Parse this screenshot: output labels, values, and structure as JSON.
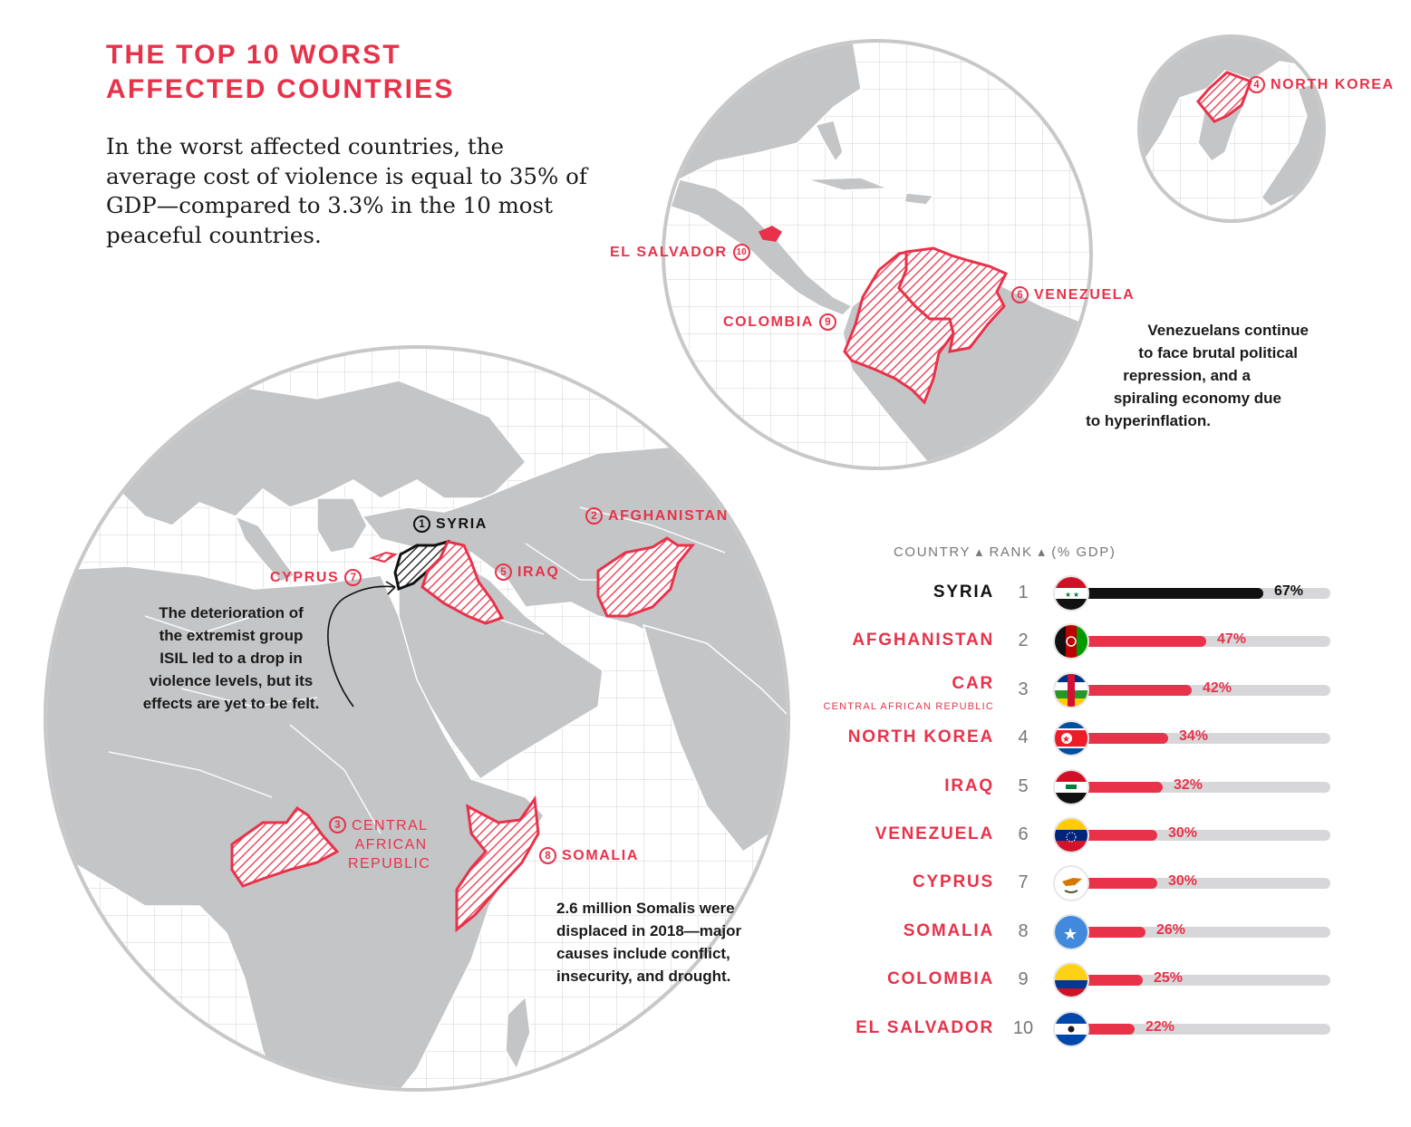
{
  "title": {
    "line1": "THE TOP 10 WORST",
    "line2": "AFFECTED COUNTRIES"
  },
  "intro": "In the worst affected countries, the average cost of violence is equal to 35% of GDP—compared to 3.3% in the 10 most peaceful countries.",
  "map_labels": {
    "syria": {
      "num": "1",
      "name": "SYRIA"
    },
    "afghanistan": {
      "num": "2",
      "name": "AFGHANISTAN"
    },
    "car": {
      "num": "3",
      "lines": [
        "CENTRAL",
        "AFRICAN",
        "REPUBLIC"
      ]
    },
    "north_korea": {
      "num": "4",
      "name": "NORTH KOREA"
    },
    "iraq": {
      "num": "5",
      "name": "IRAQ"
    },
    "venezuela": {
      "num": "6",
      "name": "VENEZUELA"
    },
    "cyprus": {
      "num": "7",
      "name": "CYPRUS"
    },
    "somalia": {
      "num": "8",
      "name": "SOMALIA"
    },
    "colombia": {
      "num": "9",
      "name": "COLOMBIA"
    },
    "el_salvador": {
      "num": "10",
      "name": "EL SALVADOR"
    }
  },
  "notes": {
    "isil": [
      "The deterioration of",
      "the extremist group",
      "ISIL led to a drop in",
      "violence levels, but its",
      "effects are yet to be felt."
    ],
    "venezuela": [
      "Venezuelans continue",
      "to face brutal political",
      "repression, and a",
      "spiraling economy due",
      "to hyperinflation."
    ],
    "somalia": [
      "2.6 million Somalis were",
      "displaced in 2018—major",
      "causes include conflict,",
      "insecurity, and drought."
    ]
  },
  "table": {
    "header": "COUNTRY ▴ RANK ▴ (% GDP)",
    "accent": "#e8324a",
    "top_color": "#111111",
    "track_color": "#d7d7d9"
  },
  "chart_data": {
    "type": "bar",
    "title": "",
    "xlabel": "",
    "ylabel": "(% GDP)",
    "ylim": [
      0,
      100
    ],
    "categories": [
      "SYRIA",
      "AFGHANISTAN",
      "CAR",
      "NORTH KOREA",
      "IRAQ",
      "VENEZUELA",
      "CYPRUS",
      "SOMALIA",
      "COLOMBIA",
      "EL SALVADOR"
    ],
    "subtitles": [
      "",
      "",
      "CENTRAL AFRICAN REPUBLIC",
      "",
      "",
      "",
      "",
      "",
      "",
      ""
    ],
    "ranks": [
      1,
      2,
      3,
      4,
      5,
      6,
      7,
      8,
      9,
      10
    ],
    "values": [
      67,
      47,
      42,
      34,
      32,
      30,
      30,
      26,
      25,
      22
    ],
    "labels": [
      "67%",
      "47%",
      "42%",
      "34%",
      "32%",
      "30%",
      "30%",
      "26%",
      "25%",
      "22%"
    ],
    "flags": [
      "syria-flag-icon",
      "afghanistan-flag-icon",
      "car-flag-icon",
      "north-korea-flag-icon",
      "iraq-flag-icon",
      "venezuela-flag-icon",
      "cyprus-flag-icon",
      "somalia-flag-icon",
      "colombia-flag-icon",
      "el-salvador-flag-icon"
    ]
  }
}
